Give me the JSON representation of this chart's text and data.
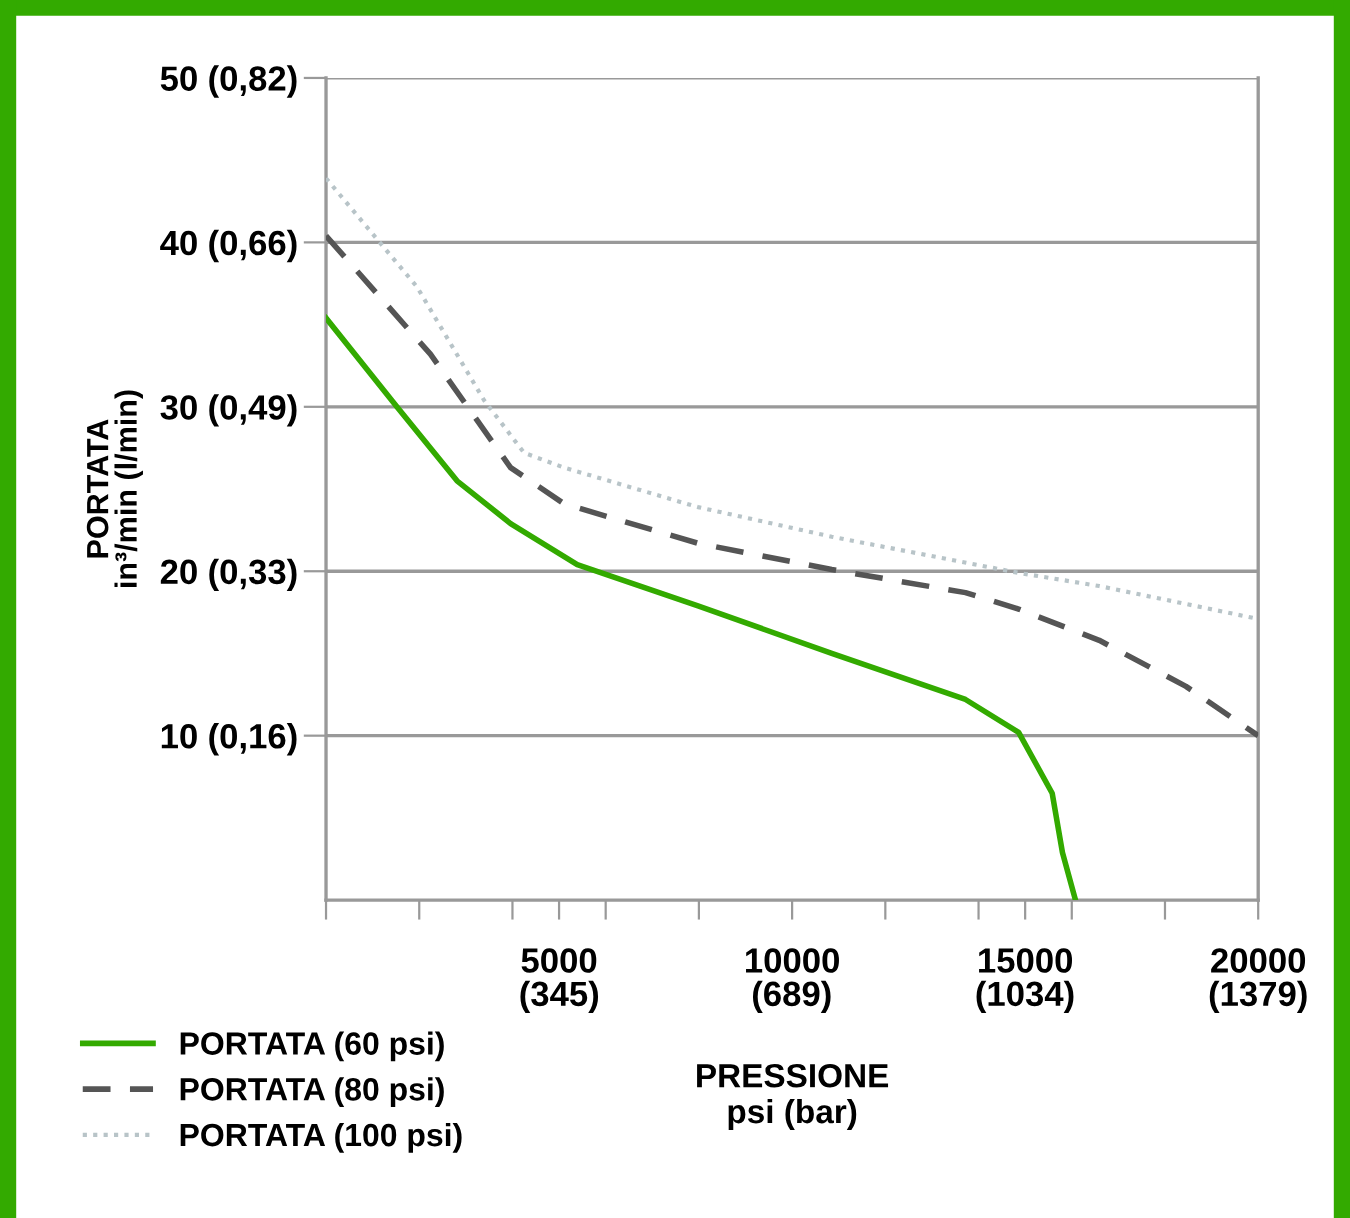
{
  "chart_data": {
    "type": "line",
    "xlabel": "PRESSIONE\npsi (bar)",
    "ylabel": "PORTATA\nin³/min (l/min)",
    "xlim": [
      0,
      20000
    ],
    "ylim": [
      0,
      50
    ],
    "xticks": [
      {
        "value": 0,
        "label": null
      },
      {
        "value": 2000,
        "label": null
      },
      {
        "value": 4000,
        "label": null
      },
      5000,
      {
        "value": 6000,
        "label": null
      },
      {
        "value": 8000,
        "label": null
      },
      10000,
      {
        "value": 12000,
        "label": null
      },
      {
        "value": 14000,
        "label": null
      },
      15000,
      {
        "value": 16000,
        "label": null
      },
      {
        "value": 18000,
        "label": null
      },
      20000
    ],
    "yticks": [
      10,
      20,
      30,
      40,
      50
    ],
    "x2lim": [
      0,
      1379
    ],
    "x2ticks": [
      {
        "value": 345,
        "label": "(345)"
      },
      {
        "value": 689,
        "label": "(689)"
      },
      {
        "value": 1034,
        "label": "(1034)"
      },
      {
        "value": 1379,
        "label": "(1379)"
      }
    ],
    "y2lim": [
      0,
      0.82
    ],
    "y2ticks": [
      {
        "value": 0.164,
        "label": "(0,16)"
      },
      {
        "value": 0.328,
        "label": "(0,33)"
      },
      {
        "value": 0.492,
        "label": "(0,49)"
      },
      {
        "value": 0.656,
        "label": "(0,66)"
      },
      {
        "value": 0.82,
        "label": "(0,82)"
      }
    ],
    "grid": "y",
    "legend": "bottom left",
    "series": [
      {
        "name": "PORTATA (60 psi)",
        "color": "#33aa00",
        "line_style": "solid",
        "x": [
          0,
          1520,
          2810,
          3960,
          5390,
          7980,
          10850,
          13720,
          14860,
          15580,
          15800,
          16080
        ],
        "values": [
          35.4,
          30.0,
          25.5,
          22.9,
          20.4,
          17.9,
          15.0,
          12.2,
          10.2,
          6.5,
          2.9,
          0
        ]
      },
      {
        "name": "PORTATA (80 psi)",
        "color": "#555555",
        "line_style": "dashed",
        "x": [
          0,
          2240,
          3960,
          5110,
          7980,
          10850,
          13720,
          14860,
          16590,
          18450,
          20000
        ],
        "values": [
          40.4,
          33.2,
          26.3,
          24.1,
          21.7,
          20.1,
          18.7,
          17.7,
          15.8,
          13.0,
          10.0
        ]
      },
      {
        "name": "PORTATA (100 psi)",
        "color": "#b8c4c8",
        "line_style": "dotted",
        "x": [
          0,
          1950,
          3390,
          4250,
          5110,
          7980,
          10850,
          14860,
          16590,
          20000
        ],
        "values": [
          43.9,
          37.3,
          30.4,
          27.2,
          26.3,
          23.9,
          22.1,
          19.9,
          19.1,
          17.1
        ]
      }
    ]
  }
}
